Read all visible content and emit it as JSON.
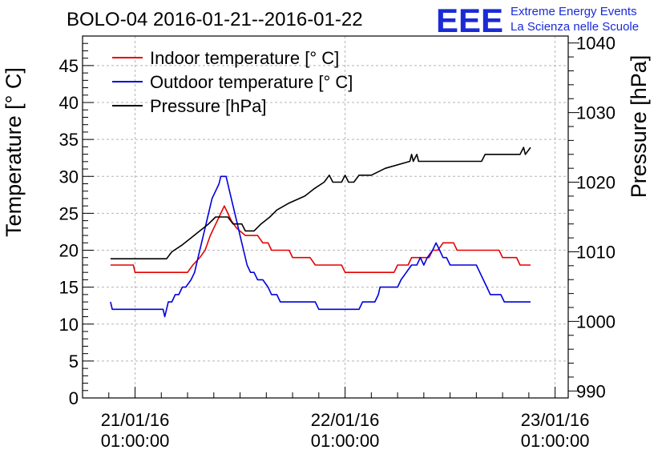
{
  "colors": {
    "indoor": "#e60000",
    "outdoor": "#0000dd",
    "pressure": "#000000",
    "logo": "#1a2bd6",
    "grid": "#b5b5b5"
  },
  "header": {
    "title": "BOLO-04 2016-01-21--2016-01-22",
    "logo_mark": "EEE",
    "logo_line1": "Extreme Energy Events",
    "logo_line2": "La Scienza nelle Scuole"
  },
  "chart_data": {
    "type": "line",
    "title": "BOLO-04 2016-01-21--2016-01-22",
    "xlabel": "",
    "ylabel": "Temperature [° C]",
    "y2label": "Pressure [hPa]",
    "x_unit": "hours since 21/01/16 01:00:00",
    "x_ticks": [
      {
        "x": 0,
        "line1": "21/01/16",
        "line2": "01:00:00"
      },
      {
        "x": 24,
        "line1": "22/01/16",
        "line2": "01:00:00"
      },
      {
        "x": 48,
        "line1": "23/01/16",
        "line2": "01:00:00"
      }
    ],
    "xlim": [
      -6,
      49.5
    ],
    "ylim": [
      0,
      49
    ],
    "y2lim": [
      989,
      1041
    ],
    "y_ticks": [
      0,
      5,
      10,
      15,
      20,
      25,
      30,
      35,
      40,
      45
    ],
    "y2_ticks": [
      990,
      1000,
      1010,
      1020,
      1030,
      1040
    ],
    "grid": true,
    "legend_position": "top-left",
    "series": [
      {
        "name": "Indoor temperature [° C]",
        "axis": "left",
        "points": [
          [
            -2.8,
            18
          ],
          [
            -0.2,
            18
          ],
          [
            0,
            17
          ],
          [
            6,
            17
          ],
          [
            6.6,
            18
          ],
          [
            7.4,
            19
          ],
          [
            8,
            20
          ],
          [
            8.6,
            22
          ],
          [
            9,
            23
          ],
          [
            9.4,
            24
          ],
          [
            9.8,
            25
          ],
          [
            10.2,
            26
          ],
          [
            10.6,
            25
          ],
          [
            11,
            24
          ],
          [
            11.6,
            23
          ],
          [
            12.6,
            22
          ],
          [
            14,
            22
          ],
          [
            14.6,
            21
          ],
          [
            15.2,
            21
          ],
          [
            15.6,
            20
          ],
          [
            17.6,
            20
          ],
          [
            18,
            19
          ],
          [
            20,
            19
          ],
          [
            20.6,
            18
          ],
          [
            23.6,
            18
          ],
          [
            24,
            17
          ],
          [
            29.6,
            17
          ],
          [
            30,
            18
          ],
          [
            31.2,
            18
          ],
          [
            31.6,
            19
          ],
          [
            33.6,
            19
          ],
          [
            34,
            20
          ],
          [
            34.6,
            20
          ],
          [
            35.2,
            21
          ],
          [
            36.4,
            21
          ],
          [
            36.8,
            20
          ],
          [
            41.6,
            20
          ],
          [
            42,
            19
          ],
          [
            43.6,
            19
          ],
          [
            44,
            18
          ],
          [
            45.2,
            18
          ]
        ]
      },
      {
        "name": "Outdoor temperature [° C]",
        "axis": "left",
        "points": [
          [
            -2.8,
            13
          ],
          [
            -2.6,
            12
          ],
          [
            3.2,
            12
          ],
          [
            3.4,
            11
          ],
          [
            3.6,
            12
          ],
          [
            3.8,
            13
          ],
          [
            4.2,
            13
          ],
          [
            4.6,
            14
          ],
          [
            5,
            14
          ],
          [
            5.4,
            15
          ],
          [
            5.8,
            15
          ],
          [
            6.4,
            16
          ],
          [
            6.8,
            17
          ],
          [
            7.2,
            19
          ],
          [
            7.6,
            21
          ],
          [
            8,
            23
          ],
          [
            8.4,
            25
          ],
          [
            8.8,
            27
          ],
          [
            9.2,
            28
          ],
          [
            9.6,
            29
          ],
          [
            9.8,
            30
          ],
          [
            10.4,
            30
          ],
          [
            10.8,
            28
          ],
          [
            11.2,
            26
          ],
          [
            11.6,
            24
          ],
          [
            12,
            22
          ],
          [
            12.4,
            20
          ],
          [
            12.8,
            18
          ],
          [
            13.2,
            17
          ],
          [
            13.6,
            17
          ],
          [
            14,
            16
          ],
          [
            14.6,
            16
          ],
          [
            15.2,
            15
          ],
          [
            15.6,
            14
          ],
          [
            16.2,
            14
          ],
          [
            16.6,
            13
          ],
          [
            20.6,
            13
          ],
          [
            21,
            12
          ],
          [
            25.6,
            12
          ],
          [
            26,
            13
          ],
          [
            27.4,
            13
          ],
          [
            27.8,
            14
          ],
          [
            28,
            15
          ],
          [
            30,
            15
          ],
          [
            30.4,
            16
          ],
          [
            31,
            17
          ],
          [
            31.6,
            18
          ],
          [
            32.2,
            18
          ],
          [
            32.6,
            19
          ],
          [
            33,
            18
          ],
          [
            33.4,
            19
          ],
          [
            34,
            20
          ],
          [
            34.4,
            21
          ],
          [
            34.8,
            20
          ],
          [
            35.2,
            19
          ],
          [
            35.6,
            19
          ],
          [
            36,
            18
          ],
          [
            39,
            18
          ],
          [
            39.4,
            17
          ],
          [
            39.8,
            16
          ],
          [
            40.2,
            15
          ],
          [
            40.6,
            14
          ],
          [
            41.8,
            14
          ],
          [
            42.2,
            13
          ],
          [
            45.2,
            13
          ]
        ]
      },
      {
        "name": "Pressure [hPa]",
        "axis": "right",
        "points": [
          [
            -2.8,
            1009
          ],
          [
            3.6,
            1009
          ],
          [
            4.2,
            1010
          ],
          [
            5.4,
            1011
          ],
          [
            6.4,
            1012
          ],
          [
            7.4,
            1013
          ],
          [
            8.4,
            1014
          ],
          [
            9.2,
            1015
          ],
          [
            10.6,
            1015
          ],
          [
            11.2,
            1014
          ],
          [
            12.2,
            1014
          ],
          [
            12.6,
            1013
          ],
          [
            13.6,
            1013
          ],
          [
            14.4,
            1014
          ],
          [
            15.4,
            1015
          ],
          [
            16.2,
            1016
          ],
          [
            17.6,
            1017
          ],
          [
            19.4,
            1018
          ],
          [
            20.4,
            1019
          ],
          [
            21.6,
            1020
          ],
          [
            22.2,
            1021
          ],
          [
            22.6,
            1020
          ],
          [
            23.6,
            1020
          ],
          [
            24,
            1021
          ],
          [
            24.4,
            1020
          ],
          [
            25,
            1020
          ],
          [
            25.6,
            1021
          ],
          [
            27,
            1021
          ],
          [
            28.6,
            1022
          ],
          [
            31.4,
            1023
          ],
          [
            31.6,
            1024
          ],
          [
            31.8,
            1023
          ],
          [
            32.2,
            1024
          ],
          [
            32.4,
            1023
          ],
          [
            35,
            1023
          ],
          [
            39.6,
            1023
          ],
          [
            40,
            1024
          ],
          [
            44,
            1024
          ],
          [
            44.4,
            1025
          ],
          [
            44.6,
            1024
          ],
          [
            45.2,
            1025
          ]
        ]
      }
    ]
  }
}
